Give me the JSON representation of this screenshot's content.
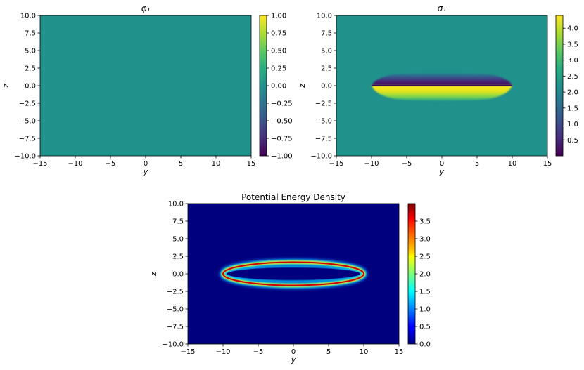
{
  "chart_data": [
    {
      "type": "heatmap",
      "title": "φ₁",
      "xlabel": "y",
      "ylabel": "z",
      "xlim": [
        -15,
        15
      ],
      "ylim": [
        -10,
        10
      ],
      "x_ticks": [
        "−15",
        "−10",
        "−5",
        "0",
        "5",
        "10",
        "15"
      ],
      "y_ticks": [
        "−10.0",
        "−7.5",
        "−5.0",
        "−2.5",
        "0.0",
        "2.5",
        "5.0",
        "7.5",
        "10.0"
      ],
      "colormap": "viridis",
      "color_range": [
        -1.0,
        1.0
      ],
      "colorbar_ticks": [
        "−1.00",
        "−0.75",
        "−0.50",
        "−0.25",
        "0.00",
        "0.25",
        "0.50",
        "0.75",
        "1.00"
      ],
      "field_description": "approximately uniform value 0 across the domain"
    },
    {
      "type": "heatmap",
      "title": "σ₁",
      "xlabel": "y",
      "ylabel": "z",
      "xlim": [
        -15,
        15
      ],
      "ylim": [
        -10,
        10
      ],
      "x_ticks": [
        "−15",
        "−10",
        "−5",
        "0",
        "5",
        "10",
        "15"
      ],
      "y_ticks": [
        "−10.0",
        "−7.5",
        "−5.0",
        "−2.5",
        "0.0",
        "2.5",
        "5.0",
        "7.5",
        "10.0"
      ],
      "colormap": "viridis",
      "color_range": [
        0.0,
        4.4
      ],
      "colorbar_ticks": [
        "0.5",
        "1.0",
        "1.5",
        "2.0",
        "2.5",
        "3.0",
        "3.5",
        "4.0"
      ],
      "background_value": 2.2,
      "lower_half_peak": 4.4,
      "upper_half_min": 0.0,
      "feature_half_width_y": 10,
      "feature_thickness_z": 2.0
    },
    {
      "type": "heatmap",
      "title": "Potential Energy Density",
      "xlabel": "y",
      "ylabel": "z",
      "xlim": [
        -15,
        15
      ],
      "ylim": [
        -10,
        10
      ],
      "x_ticks": [
        "−15",
        "−10",
        "−5",
        "0",
        "5",
        "10",
        "15"
      ],
      "y_ticks": [
        "−10.0",
        "−7.5",
        "−5.0",
        "−2.5",
        "0.0",
        "2.5",
        "5.0",
        "7.5",
        "10.0"
      ],
      "colormap": "jet",
      "color_range": [
        0.0,
        4.0
      ],
      "colorbar_ticks": [
        "0.0",
        "0.5",
        "1.0",
        "1.5",
        "2.0",
        "2.5",
        "3.0",
        "3.5"
      ],
      "ring_semi_axis_y": 10,
      "ring_semi_axis_z": 1.65,
      "ring_peak": 4.0
    }
  ]
}
